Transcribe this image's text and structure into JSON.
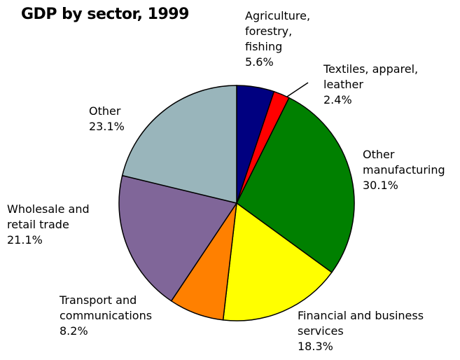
{
  "chart_data": {
    "type": "pie",
    "title": "GDP by sector, 1999",
    "categories": [
      "Agriculture,\nforestry,\nfishing",
      "Textiles, apparel,\nleather",
      "Other\nmanufacturing",
      "Financial and business\nservices",
      "Transport and\ncommunications",
      "Wholesale and\nretail trade",
      "Other"
    ],
    "values": [
      5.6,
      2.4,
      30.1,
      18.3,
      8.2,
      21.1,
      23.1
    ],
    "value_labels": [
      "5.6%",
      "2.4%",
      "30.1%",
      "18.3%",
      "8.2%",
      "21.1%",
      "23.1%"
    ],
    "colors": [
      "#000080",
      "#ff0000",
      "#008000",
      "#ffff00",
      "#ff8000",
      "#806699",
      "#99b5bb"
    ]
  }
}
